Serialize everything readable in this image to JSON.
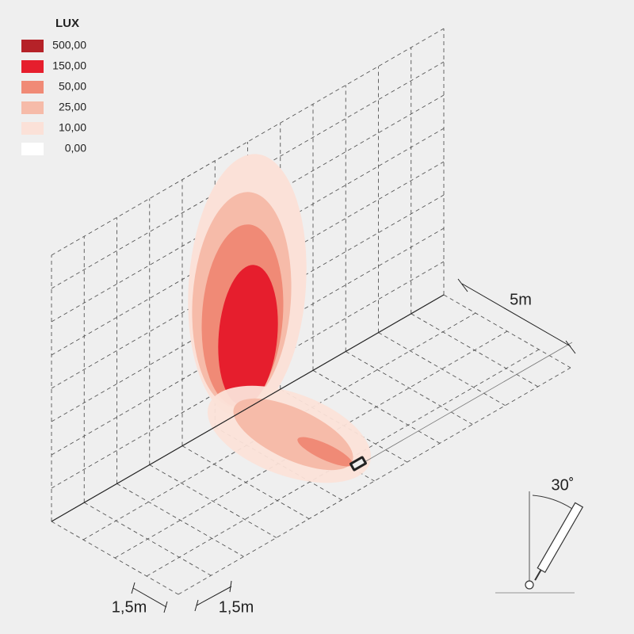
{
  "legend": {
    "title": "LUX",
    "items": [
      {
        "label": "500,00",
        "color": "#b52228"
      },
      {
        "label": "150,00",
        "color": "#e61e2d"
      },
      {
        "label": "50,00",
        "color": "#f08a76"
      },
      {
        "label": "25,00",
        "color": "#f6bba9"
      },
      {
        "label": "10,00",
        "color": "#fbe1d8"
      },
      {
        "label": "0,00",
        "color": "#ffffff"
      }
    ]
  },
  "dimensions": {
    "depth": "5m",
    "spacing_left": "1,5m",
    "spacing_right": "1,5m",
    "tilt": "30˚"
  }
}
